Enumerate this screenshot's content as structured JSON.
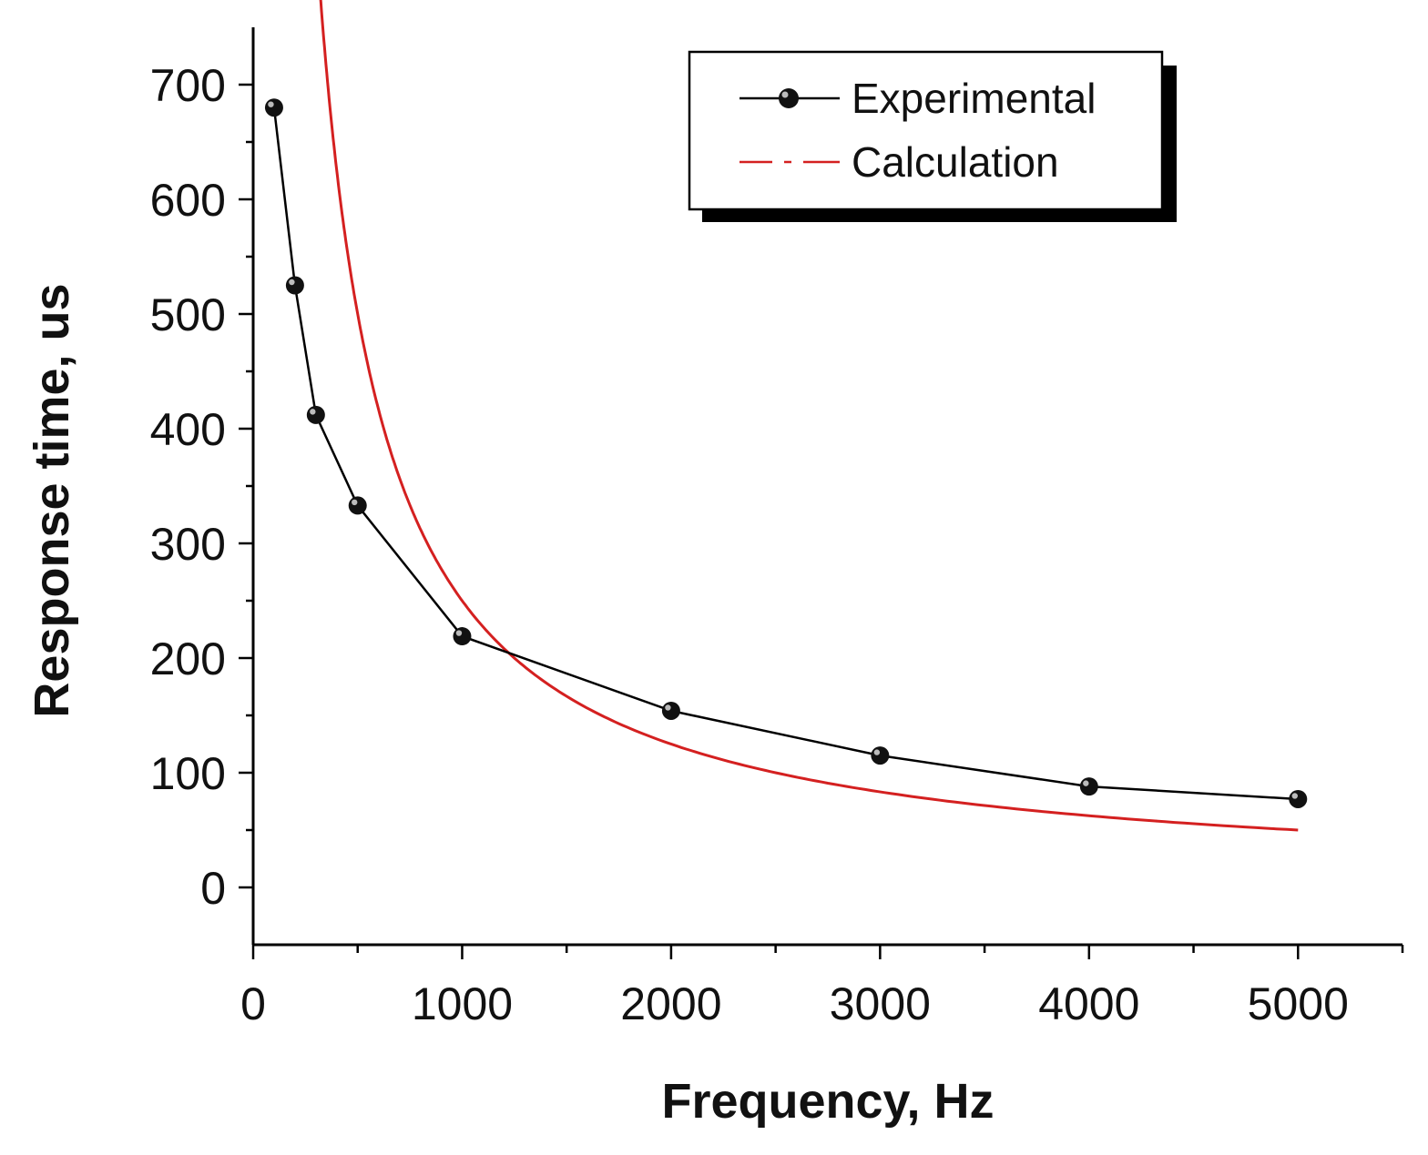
{
  "chart_data": {
    "type": "line",
    "title": "",
    "xlabel": "Frequency, Hz",
    "ylabel": "Response time, us",
    "xlim": [
      0,
      5500
    ],
    "ylim": [
      -50,
      750
    ],
    "x_ticks": [
      0,
      1000,
      2000,
      3000,
      4000,
      5000
    ],
    "x_tick_labels": [
      "0",
      "1000",
      "2000",
      "3000",
      "4000",
      "5000"
    ],
    "y_ticks": [
      0,
      100,
      200,
      300,
      400,
      500,
      600,
      700
    ],
    "y_tick_labels": [
      "0",
      "100",
      "200",
      "300",
      "400",
      "500",
      "600",
      "700"
    ],
    "grid": false,
    "legend_position": "top-right",
    "series": [
      {
        "name": "Experimental",
        "style": "line-with-markers",
        "color": "#000000",
        "x": [
          100,
          200,
          300,
          500,
          1000,
          2000,
          3000,
          4000,
          5000
        ],
        "y": [
          680,
          525,
          412,
          333,
          219,
          154,
          115,
          88,
          77
        ]
      },
      {
        "name": "Calculation",
        "style": "curve",
        "color": "#d42020",
        "formula": "y = 250000 / x",
        "x_range": [
          215,
          5000
        ]
      }
    ]
  }
}
